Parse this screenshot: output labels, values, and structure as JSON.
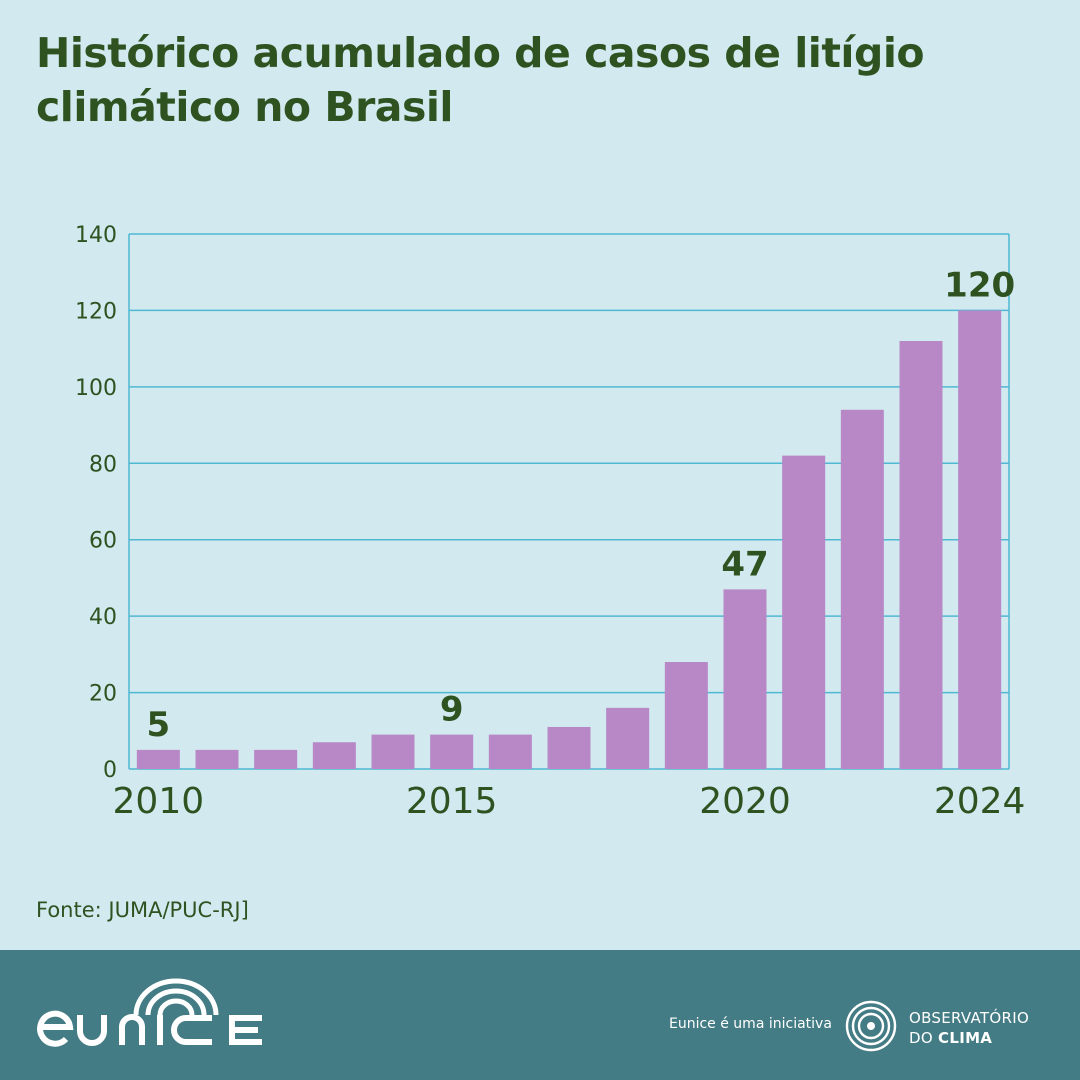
{
  "title": "Histórico acumulado de casos de litígio climático no Brasil",
  "source": "Fonte: JUMA/PUC-RJ]",
  "footer": {
    "brand": "eUNICE",
    "initiative_text": "Eunice é uma iniciativa",
    "partner_line1": "OBSERVATÓRIO",
    "partner_line2_a": "DO ",
    "partner_line2_b": "CLIMA"
  },
  "colors": {
    "background": "#d2e9ef",
    "bar": "#b887c6",
    "text": "#2e5321",
    "grid": "#4fb8d3",
    "footer": "#437c84"
  },
  "chart_data": {
    "type": "bar",
    "categories": [
      "2010",
      "2011",
      "2012",
      "2013",
      "2014",
      "2015",
      "2016",
      "2017",
      "2018",
      "2019",
      "2020",
      "2021",
      "2022",
      "2023",
      "2024"
    ],
    "values": [
      5,
      5,
      5,
      7,
      9,
      9,
      9,
      11,
      16,
      28,
      47,
      82,
      94,
      112,
      120
    ],
    "x_tick_labels": {
      "2010": "2010",
      "2015": "2015",
      "2020": "2020",
      "2024": "2024"
    },
    "data_labels": {
      "2010": "5",
      "2015": "9",
      "2020": "47",
      "2024": "120"
    },
    "yticks": [
      0,
      20,
      40,
      60,
      80,
      100,
      120,
      140
    ],
    "ylim": [
      0,
      140
    ],
    "grid": true
  }
}
